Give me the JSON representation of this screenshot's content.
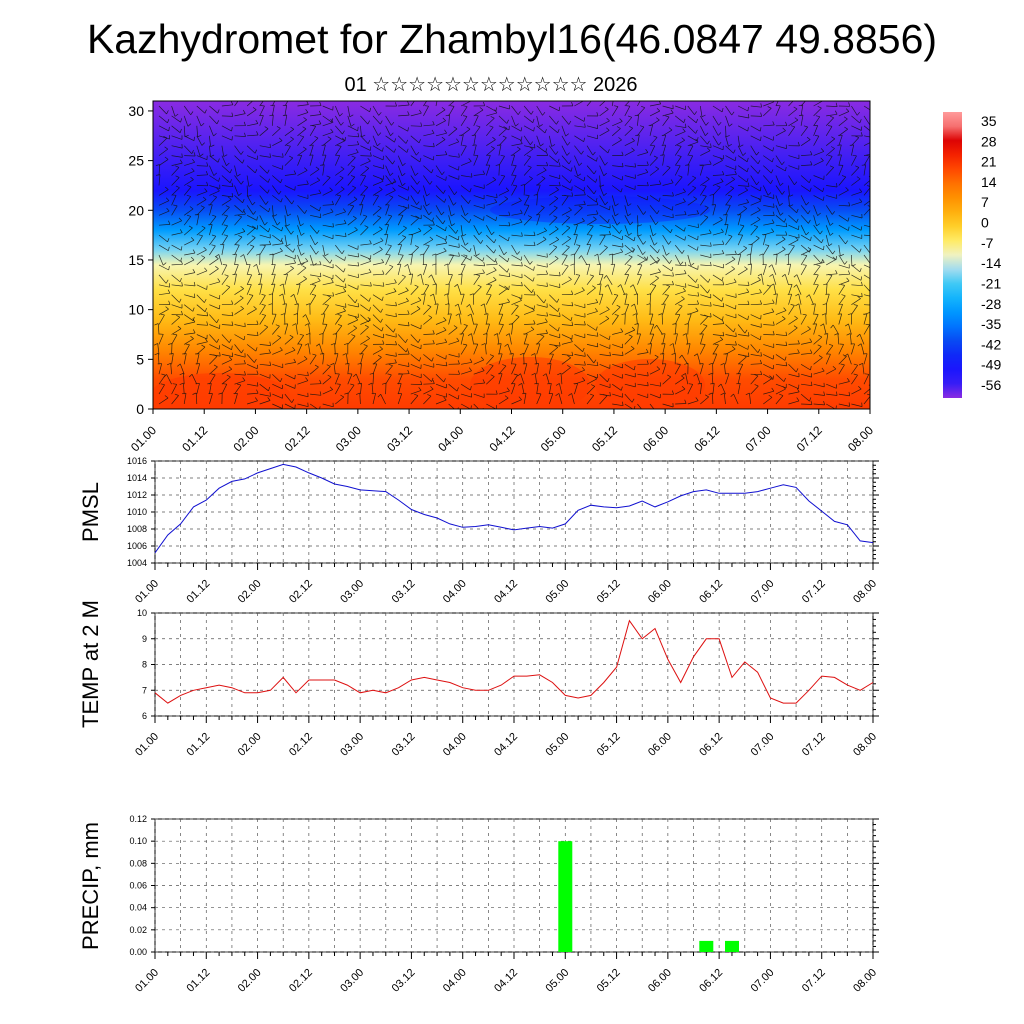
{
  "header": {
    "title": "Kazhydromet for Zhambyl16(46.0847 49.8856)",
    "subtitle": "01 ☆☆☆☆☆☆☆☆☆☆☆☆ 2026"
  },
  "colors": {
    "pmsl_line": "#1010d0",
    "temp_line": "#dd1010",
    "precip_bar": "#00ff00"
  },
  "chart_data": [
    {
      "id": "cross_section",
      "type": "heatmap",
      "title": "",
      "xlabel": "",
      "ylabel": "",
      "x_ticks": [
        "01.00",
        "01.12",
        "02.00",
        "02.12",
        "03.00",
        "03.12",
        "04.00",
        "04.12",
        "05.00",
        "05.12",
        "06.00",
        "06.12",
        "07.00",
        "07.12",
        "08.00"
      ],
      "y_ticks": [
        0,
        5,
        10,
        15,
        20,
        25,
        30
      ],
      "ylim": [
        0,
        31
      ],
      "colorbar_labels": [
        "35",
        "28",
        "21",
        "14",
        "7",
        "0",
        "-7",
        "-14",
        "-21",
        "-28",
        "-35",
        "-42",
        "-49",
        "-56"
      ],
      "colorbar_range": [
        -60,
        38
      ],
      "temperature_profile_by_level": [
        {
          "level": 0,
          "t": 20
        },
        {
          "level": 3,
          "t": 18
        },
        {
          "level": 6,
          "t": 10
        },
        {
          "level": 9,
          "t": 2
        },
        {
          "level": 12,
          "t": -4
        },
        {
          "level": 14.5,
          "t": -10
        },
        {
          "level": 16,
          "t": -18
        },
        {
          "level": 18,
          "t": -30
        },
        {
          "level": 20,
          "t": -40
        },
        {
          "level": 22,
          "t": -50
        },
        {
          "level": 25,
          "t": -56
        },
        {
          "level": 28,
          "t": -58
        },
        {
          "level": 31,
          "t": -60
        }
      ],
      "overlay": "wind barbs"
    },
    {
      "id": "pmsl",
      "type": "line",
      "ylabel": "PMSL",
      "ylim": [
        1004,
        1016
      ],
      "y_ticks": [
        1004,
        1006,
        1008,
        1010,
        1012,
        1014,
        1016
      ],
      "x_ticks": [
        "01.00",
        "01.12",
        "02.00",
        "02.12",
        "03.00",
        "03.12",
        "04.00",
        "04.12",
        "05.00",
        "05.12",
        "06.00",
        "06.12",
        "07.00",
        "07.12",
        "08.00"
      ],
      "step_hours": 3,
      "values": [
        1005.2,
        1007.3,
        1008.6,
        1010.6,
        1011.4,
        1012.8,
        1013.6,
        1013.9,
        1014.6,
        1015.1,
        1015.6,
        1015.3,
        1014.6,
        1014.0,
        1013.3,
        1013.0,
        1012.6,
        1012.5,
        1012.4,
        1011.4,
        1010.3,
        1009.7,
        1009.3,
        1008.6,
        1008.2,
        1008.3,
        1008.5,
        1008.2,
        1007.9,
        1008.1,
        1008.3,
        1008.1,
        1008.6,
        1010.2,
        1010.8,
        1010.6,
        1010.5,
        1010.7,
        1011.3,
        1010.6,
        1011.2,
        1011.9,
        1012.4,
        1012.6,
        1012.2,
        1012.2,
        1012.2,
        1012.4,
        1012.8,
        1013.2,
        1012.9,
        1011.3,
        1010.1,
        1008.9,
        1008.5,
        1006.6,
        1006.4
      ]
    },
    {
      "id": "temp2m",
      "type": "line",
      "ylabel": "TEMP at 2 M",
      "ylim": [
        6,
        10
      ],
      "y_ticks": [
        6,
        7,
        8,
        9,
        10
      ],
      "x_ticks": [
        "01.00",
        "01.12",
        "02.00",
        "02.12",
        "03.00",
        "03.12",
        "04.00",
        "04.12",
        "05.00",
        "05.12",
        "06.00",
        "06.12",
        "07.00",
        "07.12",
        "08.00"
      ],
      "step_hours": 3,
      "values": [
        6.9,
        6.5,
        6.8,
        7.0,
        7.1,
        7.2,
        7.1,
        6.9,
        6.9,
        7.0,
        7.5,
        6.9,
        7.4,
        7.4,
        7.4,
        7.2,
        6.9,
        7.0,
        6.9,
        7.1,
        7.4,
        7.5,
        7.4,
        7.3,
        7.1,
        7.0,
        7.0,
        7.2,
        7.55,
        7.55,
        7.6,
        7.3,
        6.8,
        6.7,
        6.8,
        7.3,
        7.9,
        9.7,
        9.0,
        9.4,
        8.2,
        7.3,
        8.3,
        9.0,
        9.0,
        7.5,
        8.1,
        7.7,
        6.7,
        6.5,
        6.5,
        7.0,
        7.55,
        7.5,
        7.2,
        7.0,
        7.3
      ]
    },
    {
      "id": "precip",
      "type": "bar",
      "ylabel": "PRECIP, mm",
      "ylim": [
        0,
        0.12
      ],
      "y_ticks": [
        "0.00",
        "0.02",
        "0.04",
        "0.06",
        "0.08",
        "0.10",
        "0.12"
      ],
      "x_ticks": [
        "01.00",
        "01.12",
        "02.00",
        "02.12",
        "03.00",
        "03.12",
        "04.00",
        "04.12",
        "05.00",
        "05.12",
        "06.00",
        "06.12",
        "07.00",
        "07.12",
        "08.00"
      ],
      "bars": [
        {
          "hour": 96,
          "value": 0.1
        },
        {
          "hour": 129,
          "value": 0.01
        },
        {
          "hour": 135,
          "value": 0.01
        }
      ]
    }
  ]
}
